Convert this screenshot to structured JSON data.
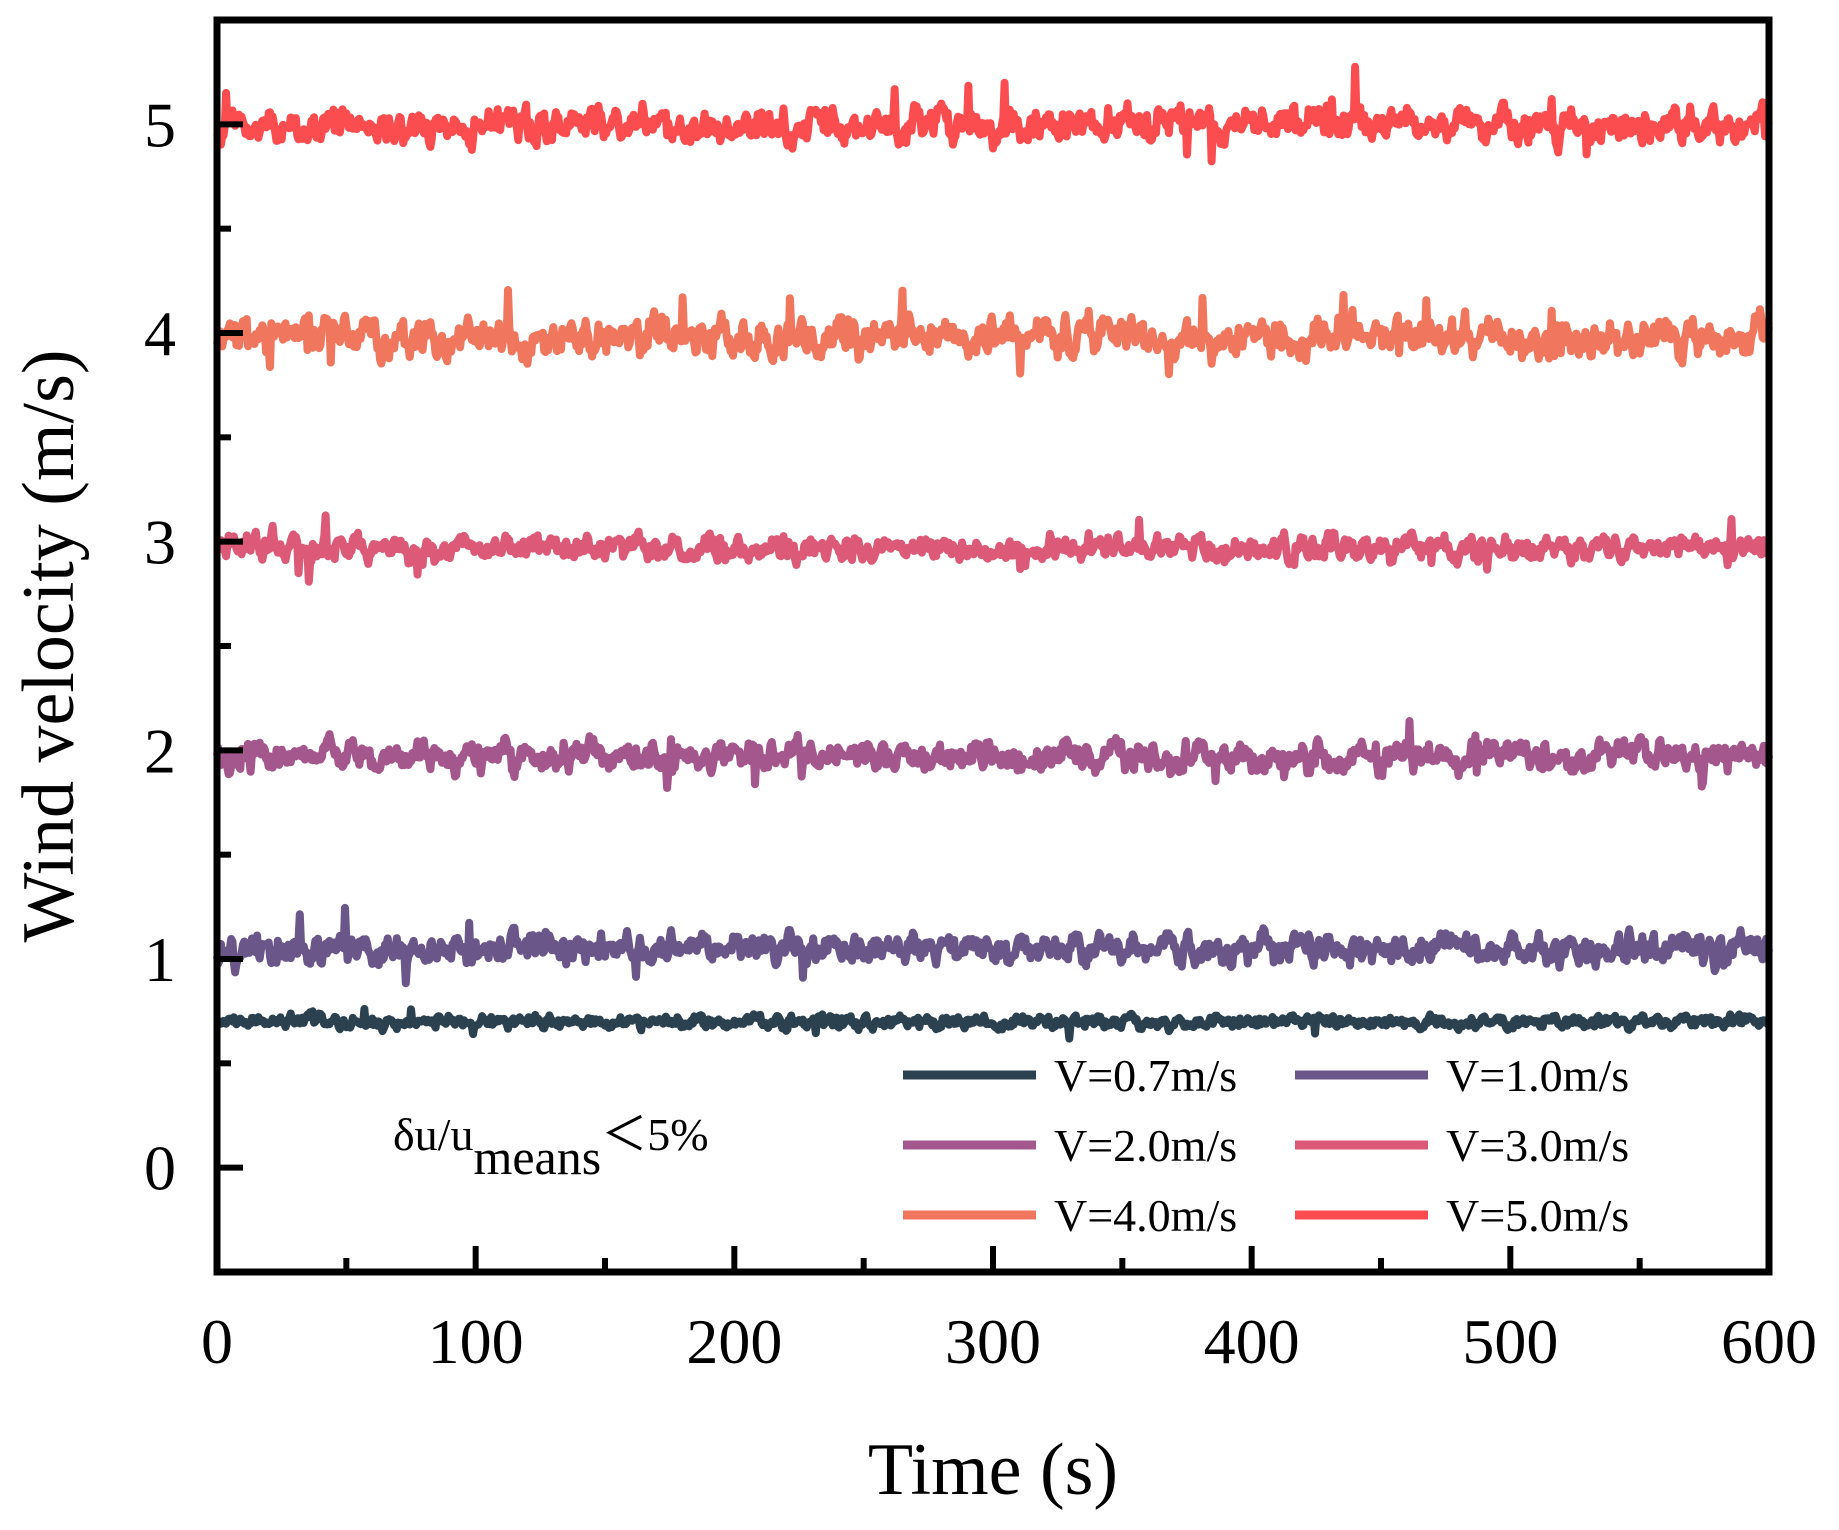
{
  "chart_data": {
    "type": "line",
    "xlabel": "Time (s)",
    "ylabel": "Wind velocity (m/s)",
    "xlim": [
      0,
      600
    ],
    "ylim": [
      -0.5,
      5.5
    ],
    "xticks": [
      "0",
      "100",
      "200",
      "300",
      "400",
      "500",
      "600"
    ],
    "yticks": [
      "0",
      "1",
      "2",
      "3",
      "4",
      "5"
    ],
    "grid": false,
    "legend_position": "bottom-right",
    "annotation": {
      "prefix": "δu/u",
      "subscript": "means",
      "suffix": "＜5%"
    },
    "series": [
      {
        "name": "V=0.7m/s",
        "color": "#2b4150",
        "mean": 0.7,
        "fluctuation": 0.03,
        "seed": 11
      },
      {
        "name": "V=1.0m/s",
        "color": "#6a5688",
        "mean": 1.05,
        "fluctuation": 0.07,
        "seed": 23
      },
      {
        "name": "V=2.0m/s",
        "color": "#a4578c",
        "mean": 1.97,
        "fluctuation": 0.07,
        "seed": 37
      },
      {
        "name": "V=3.0m/s",
        "color": "#dc5a77",
        "mean": 2.97,
        "fluctuation": 0.06,
        "seed": 51
      },
      {
        "name": "V=4.0m/s",
        "color": "#f0765d",
        "mean": 3.98,
        "fluctuation": 0.09,
        "seed": 67
      },
      {
        "name": "V=5.0m/s",
        "color": "#fb4d4f",
        "mean": 5.0,
        "fluctuation": 0.08,
        "seed": 83
      }
    ]
  }
}
